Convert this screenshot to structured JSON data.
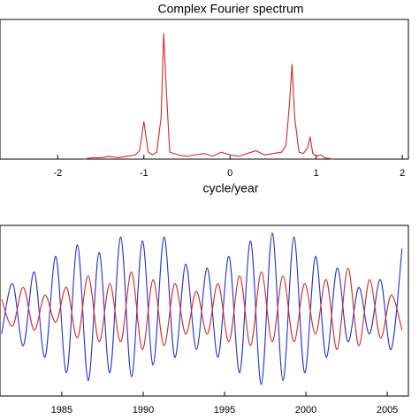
{
  "chart_data": [
    {
      "type": "line",
      "title": "Complex Fourier spectrum",
      "x_label": "cycle/year",
      "x": [
        -1.7,
        -1.6,
        -1.5,
        -1.4,
        -1.3,
        -1.2,
        -1.1,
        -1.05,
        -1.0,
        -0.95,
        -0.9,
        -0.85,
        -0.8,
        -0.77,
        -0.74,
        -0.7,
        -0.6,
        -0.5,
        -0.4,
        -0.3,
        -0.2,
        -0.1,
        0,
        0.1,
        0.2,
        0.3,
        0.4,
        0.5,
        0.6,
        0.65,
        0.69,
        0.72,
        0.75,
        0.8,
        0.85,
        0.9,
        0.93,
        0.96,
        1.0,
        1.05,
        1.1,
        1.2
      ],
      "values": [
        0,
        0.01,
        0.01,
        0.02,
        0.01,
        0.02,
        0.03,
        0.06,
        0.27,
        0.05,
        0.03,
        0.05,
        0.3,
        0.9,
        0.5,
        0.05,
        0.03,
        0.02,
        0.03,
        0.04,
        0.02,
        0.05,
        0.03,
        0.02,
        0.04,
        0.06,
        0.03,
        0.04,
        0.05,
        0.1,
        0.4,
        0.68,
        0.3,
        0.05,
        0.04,
        0.08,
        0.16,
        0.04,
        0.02,
        0.03,
        0.01,
        0
      ],
      "color": "#d62728",
      "xlim": [
        -2.67,
        2.07
      ],
      "xticks": [
        -2,
        -1,
        0,
        1,
        2
      ],
      "ylim": [
        0,
        1
      ]
    },
    {
      "type": "line",
      "x": [
        1981.3,
        1981.97,
        1982.63,
        1983.3,
        1983.96,
        1984.63,
        1985.29,
        1985.96,
        1986.62,
        1987.29,
        1987.95,
        1988.62,
        1989.28,
        1989.95,
        1990.61,
        1991.28,
        1991.94,
        1992.61,
        1993.27,
        1993.94,
        1994.6,
        1995.27,
        1995.93,
        1996.6,
        1997.26,
        1997.93,
        1998.59,
        1999.26,
        1999.92,
        2000.59,
        2001.25,
        2001.92,
        2002.58,
        2003.25,
        2003.91,
        2004.58,
        2005.24,
        2005.91
      ],
      "series": [
        {
          "color": "#2233cc",
          "values": [
            -0.3,
            0.35,
            -0.45,
            0.5,
            -0.6,
            0.7,
            -0.8,
            0.85,
            -0.9,
            0.75,
            -0.8,
            0.95,
            -0.85,
            0.9,
            -0.7,
            0.95,
            -0.6,
            0.6,
            -0.5,
            0.55,
            -0.6,
            0.7,
            -0.8,
            0.9,
            -0.95,
            1.0,
            -0.9,
            0.95,
            -0.8,
            0.7,
            -0.6,
            0.55,
            -0.4,
            0.3,
            -0.3,
            0.4,
            -0.5,
            0.8
          ]
        },
        {
          "color": "#d62728",
          "values": [
            0.15,
            -0.2,
            0.3,
            -0.25,
            0.2,
            -0.15,
            0.3,
            -0.35,
            0.45,
            -0.4,
            0.35,
            -0.4,
            0.5,
            -0.5,
            0.4,
            -0.45,
            0.35,
            -0.3,
            0.25,
            -0.3,
            0.35,
            -0.4,
            0.45,
            -0.45,
            0.5,
            -0.4,
            0.45,
            -0.4,
            0.35,
            -0.3,
            0.4,
            -0.5,
            0.55,
            -0.45,
            0.4,
            -0.35,
            0.2,
            -0.25
          ]
        }
      ],
      "xlim": [
        1981.2,
        2006.3
      ],
      "xticks": [
        1985,
        1990,
        1995,
        2000,
        2005
      ],
      "ylim": [
        -1.1,
        1.1
      ]
    }
  ]
}
